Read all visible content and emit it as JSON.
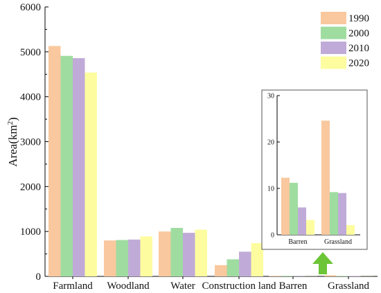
{
  "colors": {
    "s1990": "#f9c89e",
    "s2000": "#9fdca0",
    "s2010": "#c0abd8",
    "s2020": "#fdfda0",
    "arrow": "#6cc536"
  },
  "chart_data": [
    {
      "type": "bar",
      "ylabel": "Area(km",
      "ylabel_sup": "2",
      "ylabel_close": ")",
      "ylim": [
        0,
        6000
      ],
      "yticks": [
        "0",
        "1000",
        "2000",
        "3000",
        "4000",
        "5000",
        "6000"
      ],
      "categories": [
        "Farmland",
        "Woodland",
        "Water",
        "Construction land",
        "Barren",
        "Grassland"
      ],
      "series": [
        {
          "name": "1990",
          "values": [
            5130,
            800,
            1000,
            250,
            12,
            25
          ]
        },
        {
          "name": "2000",
          "values": [
            4910,
            810,
            1080,
            380,
            11,
            9
          ]
        },
        {
          "name": "2010",
          "values": [
            4860,
            820,
            970,
            550,
            6,
            9
          ]
        },
        {
          "name": "2020",
          "values": [
            4540,
            890,
            1040,
            740,
            3,
            2
          ]
        }
      ],
      "legend": "top-right"
    },
    {
      "type": "bar",
      "ylim": [
        0,
        30
      ],
      "yticks": [
        "0",
        "10",
        "20",
        "30"
      ],
      "categories": [
        "Barren",
        "Grassland"
      ],
      "series": [
        {
          "name": "1990",
          "values": [
            12.3,
            24.6
          ]
        },
        {
          "name": "2000",
          "values": [
            11.2,
            9.2
          ]
        },
        {
          "name": "2010",
          "values": [
            5.9,
            9.0
          ]
        },
        {
          "name": "2020",
          "values": [
            3.2,
            2.1
          ]
        }
      ]
    }
  ]
}
